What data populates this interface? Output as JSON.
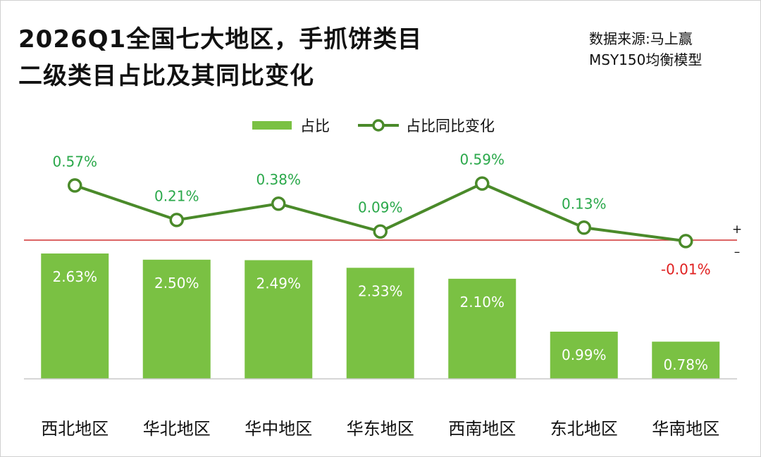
{
  "title": {
    "line1": "2026Q1全国七大地区，手抓饼类目",
    "line2": "二级类目占比及其同比变化"
  },
  "source": {
    "line1": "数据来源:马上赢",
    "line2": "MSY150均衡模型"
  },
  "colors": {
    "bar": "#7ac143",
    "line": "#4a8a2a",
    "positive_label": "#2aa84a",
    "negative_label": "#e02020",
    "zero_line": "#d03030"
  },
  "chart_data": {
    "type": "bar+line",
    "categories": [
      "西北地区",
      "华北地区",
      "华中地区",
      "华东地区",
      "西南地区",
      "东北地区",
      "华南地区"
    ],
    "series": [
      {
        "name": "占比",
        "type": "bar",
        "values": [
          2.63,
          2.5,
          2.49,
          2.33,
          2.1,
          0.99,
          0.78
        ],
        "labels": [
          "2.63%",
          "2.50%",
          "2.49%",
          "2.33%",
          "2.10%",
          "0.99%",
          "0.78%"
        ]
      },
      {
        "name": "占比同比变化",
        "type": "line",
        "values": [
          0.57,
          0.21,
          0.38,
          0.09,
          0.59,
          0.13,
          -0.01
        ],
        "labels": [
          "0.57%",
          "0.21%",
          "0.38%",
          "0.09%",
          "0.59%",
          "0.13%",
          "-0.01%"
        ]
      }
    ],
    "legend_position": "top-center",
    "sign_markers": [
      "+",
      "–"
    ]
  }
}
